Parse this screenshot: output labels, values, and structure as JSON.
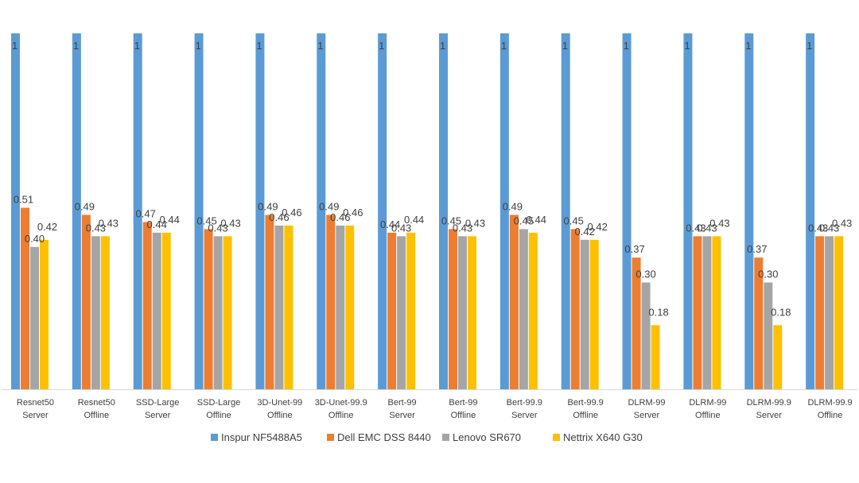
{
  "chart_data": {
    "type": "bar",
    "title": "",
    "xlabel": "",
    "ylabel": "",
    "ylim": [
      0,
      1
    ],
    "grid": false,
    "legend_position": "bottom",
    "categories": [
      [
        "Resnet50",
        "Server"
      ],
      [
        "Resnet50",
        "Offline"
      ],
      [
        "SSD-Large",
        "Server"
      ],
      [
        "SSD-Large",
        "Offline"
      ],
      [
        "3D-Unet-99",
        "Offline"
      ],
      [
        "3D-Unet-99.9",
        "Offline"
      ],
      [
        "Bert-99",
        "Server"
      ],
      [
        "Bert-99",
        "Offline"
      ],
      [
        "Bert-99.9",
        "Server"
      ],
      [
        "Bert-99.9",
        "Offline"
      ],
      [
        "DLRM-99",
        "Server"
      ],
      [
        "DLRM-99",
        "Offline"
      ],
      [
        "DLRM-99.9",
        "Server"
      ],
      [
        "DLRM-99.9",
        "Offline"
      ]
    ],
    "series": [
      {
        "name": "Inspur NF5488A5",
        "color": "#5B9BD5",
        "values": [
          1,
          1,
          1,
          1,
          1,
          1,
          1,
          1,
          1,
          1,
          1,
          1,
          1,
          1
        ],
        "labels": [
          "1",
          "1",
          "1",
          "1",
          "1",
          "1",
          "1",
          "1",
          "1",
          "1",
          "1",
          "1",
          "1",
          "1"
        ]
      },
      {
        "name": "Dell EMC DSS 8440",
        "color": "#ED7D31",
        "values": [
          0.51,
          0.49,
          0.47,
          0.45,
          0.49,
          0.49,
          0.44,
          0.45,
          0.49,
          0.45,
          0.37,
          0.43,
          0.37,
          0.43
        ],
        "labels": [
          "0.51",
          "0.49",
          "0.47",
          "0.45",
          "0.49",
          "0.49",
          "0.44",
          "0.45",
          "0.49",
          "0.45",
          "0.37",
          "0.43",
          "0.37",
          "0.43"
        ]
      },
      {
        "name": "Lenovo SR670",
        "color": "#A5A5A5",
        "values": [
          0.4,
          0.43,
          0.44,
          0.43,
          0.46,
          0.46,
          0.43,
          0.43,
          0.45,
          0.42,
          0.3,
          0.43,
          0.3,
          0.43
        ],
        "labels": [
          "0.40",
          "0.43",
          "0.44",
          "0.43",
          "0.46",
          "0.46",
          "0.43",
          "0.43",
          "0.45",
          "0.42",
          "0.30",
          "0.43",
          "0.30",
          "0.43"
        ]
      },
      {
        "name": "Nettrix X640 G30",
        "color": "#FFC000",
        "values": [
          0.42,
          0.43,
          0.44,
          0.43,
          0.46,
          0.46,
          0.44,
          0.43,
          0.44,
          0.42,
          0.18,
          0.43,
          0.18,
          0.43
        ],
        "labels": [
          "0.42",
          "0.43",
          "0.44",
          "0.43",
          "0.46",
          "0.46",
          "0.44",
          "0.43",
          "0.44",
          "0.42",
          "0.18",
          "0.43",
          "0.18",
          "0.43"
        ]
      }
    ]
  }
}
